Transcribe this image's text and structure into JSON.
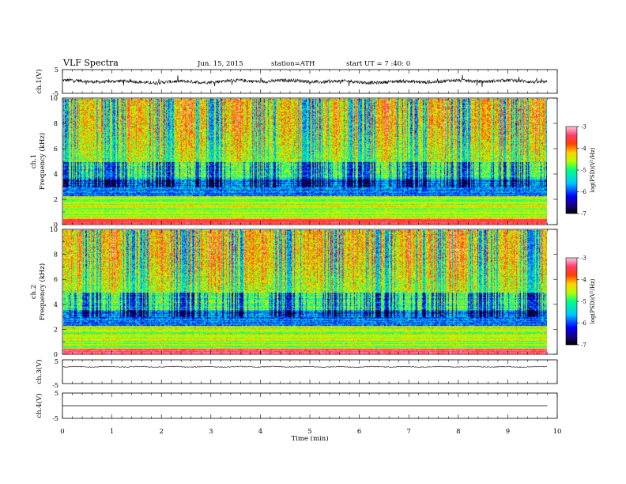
{
  "header": {
    "title": "VLF Spectra",
    "date": "Jun. 15, 2015",
    "station": "station=ATH",
    "start": "start UT =  7 :40: 0"
  },
  "chart_data": [
    {
      "type": "line",
      "id": "ch1-waveform",
      "ylabel": "ch.1(V)",
      "yticks": [
        "5",
        "-5"
      ],
      "ylim": [
        -5,
        5
      ],
      "xlim": [
        0,
        10
      ],
      "data_until": 9.8,
      "color": "#000000",
      "description_level": 1.0,
      "amplitude": 1.2
    },
    {
      "type": "heatmap",
      "id": "ch1-spectrogram",
      "ylabel": "ch.1\nFrequency (kHz)",
      "ylabel_lines": [
        "ch.1",
        "Frequency (kHz)"
      ],
      "yticks": [
        "0",
        "2",
        "4",
        "6",
        "8",
        "10"
      ],
      "ylim": [
        0,
        10
      ],
      "xlim": [
        0,
        10
      ],
      "data_until": 9.8,
      "colorbar": {
        "label": "log(PSD)(V²/Hz)",
        "ticks": [
          "-3",
          "-4",
          "-5",
          "-6",
          "-7"
        ],
        "range": [
          -7,
          -3
        ]
      }
    },
    {
      "type": "heatmap",
      "id": "ch2-spectrogram",
      "ylabel_lines": [
        "ch.2",
        "Frequency (kHz)"
      ],
      "yticks": [
        "0",
        "2",
        "4",
        "6",
        "8",
        "10"
      ],
      "ylim": [
        0,
        10
      ],
      "xlim": [
        0,
        10
      ],
      "data_until": 9.8,
      "colorbar": {
        "label": "log(PSD)(V²/Hz)",
        "ticks": [
          "-3",
          "-4",
          "-5",
          "-6",
          "-7"
        ],
        "range": [
          -7,
          -3
        ]
      }
    },
    {
      "type": "line",
      "id": "ch3-waveform",
      "ylabel": "ch.3(V)",
      "yticks": [
        "5",
        "-5"
      ],
      "ylim": [
        -5,
        5
      ],
      "xlim": [
        0,
        10
      ],
      "data_until": 9.8,
      "level": 2.2
    },
    {
      "type": "line",
      "id": "ch4-waveform",
      "ylabel": "ch.4(V)",
      "yticks": [
        "5",
        "-5"
      ],
      "ylim": [
        -5,
        5
      ],
      "xlim": [
        0,
        10
      ],
      "data_until": 9.8,
      "level": 0.0
    }
  ],
  "xaxis": {
    "label": "Time  (min)",
    "ticks": [
      "0",
      "1",
      "2",
      "3",
      "4",
      "5",
      "6",
      "7",
      "8",
      "9",
      "10"
    ],
    "range": [
      0,
      10
    ]
  }
}
